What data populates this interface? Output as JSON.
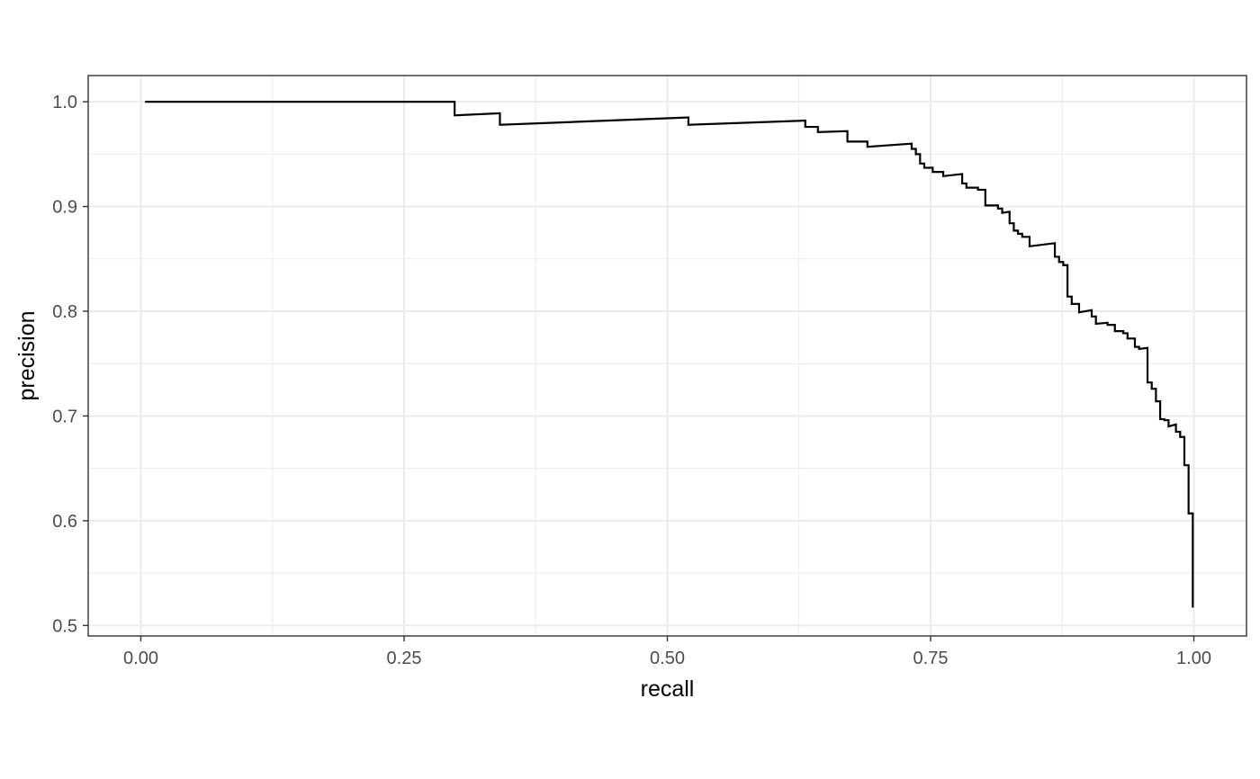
{
  "chart_data": {
    "type": "line",
    "line_style": "step",
    "xlabel": "recall",
    "ylabel": "precision",
    "xlim": [
      -0.05,
      1.05
    ],
    "ylim": [
      0.49,
      1.025
    ],
    "x_ticks": [
      0.0,
      0.25,
      0.5,
      0.75,
      1.0
    ],
    "x_tick_labels": [
      "0.00",
      "0.25",
      "0.50",
      "0.75",
      "1.00"
    ],
    "x_minor_ticks": [
      0.125,
      0.375,
      0.625,
      0.875
    ],
    "y_ticks": [
      0.5,
      0.6,
      0.7,
      0.8,
      0.9,
      1.0
    ],
    "y_tick_labels": [
      "0.5",
      "0.6",
      "0.7",
      "0.8",
      "0.9",
      "1.0"
    ],
    "y_minor_ticks": [
      0.55,
      0.65,
      0.75,
      0.85,
      0.95
    ],
    "grid": true,
    "legend": "none",
    "line_color": "#000000",
    "gridline_color": "#ebebeb",
    "panel_border_color": "#333333",
    "series": [
      {
        "points": [
          [
            0.004,
            1.0
          ],
          [
            0.298,
            1.0
          ],
          [
            0.298,
            0.987
          ],
          [
            0.341,
            0.989
          ],
          [
            0.341,
            0.978
          ],
          [
            0.52,
            0.985
          ],
          [
            0.52,
            0.978
          ],
          [
            0.631,
            0.982
          ],
          [
            0.631,
            0.976
          ],
          [
            0.643,
            0.976
          ],
          [
            0.643,
            0.971
          ],
          [
            0.671,
            0.972
          ],
          [
            0.671,
            0.962
          ],
          [
            0.69,
            0.962
          ],
          [
            0.69,
            0.957
          ],
          [
            0.732,
            0.96
          ],
          [
            0.732,
            0.955
          ],
          [
            0.736,
            0.955
          ],
          [
            0.736,
            0.95
          ],
          [
            0.74,
            0.95
          ],
          [
            0.74,
            0.941
          ],
          [
            0.744,
            0.941
          ],
          [
            0.744,
            0.937
          ],
          [
            0.752,
            0.937
          ],
          [
            0.752,
            0.933
          ],
          [
            0.762,
            0.933
          ],
          [
            0.762,
            0.929
          ],
          [
            0.78,
            0.931
          ],
          [
            0.78,
            0.922
          ],
          [
            0.784,
            0.922
          ],
          [
            0.784,
            0.918
          ],
          [
            0.795,
            0.918
          ],
          [
            0.795,
            0.916
          ],
          [
            0.802,
            0.916
          ],
          [
            0.802,
            0.901
          ],
          [
            0.814,
            0.901
          ],
          [
            0.814,
            0.898
          ],
          [
            0.818,
            0.898
          ],
          [
            0.818,
            0.894
          ],
          [
            0.825,
            0.895
          ],
          [
            0.825,
            0.884
          ],
          [
            0.829,
            0.884
          ],
          [
            0.829,
            0.877
          ],
          [
            0.833,
            0.877
          ],
          [
            0.833,
            0.874
          ],
          [
            0.837,
            0.874
          ],
          [
            0.837,
            0.871
          ],
          [
            0.844,
            0.871
          ],
          [
            0.844,
            0.862
          ],
          [
            0.868,
            0.865
          ],
          [
            0.868,
            0.852
          ],
          [
            0.872,
            0.852
          ],
          [
            0.872,
            0.847
          ],
          [
            0.876,
            0.847
          ],
          [
            0.876,
            0.844
          ],
          [
            0.88,
            0.844
          ],
          [
            0.88,
            0.814
          ],
          [
            0.884,
            0.814
          ],
          [
            0.884,
            0.807
          ],
          [
            0.891,
            0.807
          ],
          [
            0.891,
            0.799
          ],
          [
            0.903,
            0.801
          ],
          [
            0.903,
            0.795
          ],
          [
            0.907,
            0.795
          ],
          [
            0.907,
            0.788
          ],
          [
            0.918,
            0.789
          ],
          [
            0.918,
            0.787
          ],
          [
            0.925,
            0.787
          ],
          [
            0.925,
            0.781
          ],
          [
            0.933,
            0.781
          ],
          [
            0.933,
            0.779
          ],
          [
            0.937,
            0.779
          ],
          [
            0.937,
            0.774
          ],
          [
            0.944,
            0.774
          ],
          [
            0.944,
            0.766
          ],
          [
            0.948,
            0.766
          ],
          [
            0.948,
            0.764
          ],
          [
            0.956,
            0.765
          ],
          [
            0.956,
            0.732
          ],
          [
            0.96,
            0.732
          ],
          [
            0.96,
            0.726
          ],
          [
            0.964,
            0.726
          ],
          [
            0.964,
            0.714
          ],
          [
            0.968,
            0.714
          ],
          [
            0.968,
            0.697
          ],
          [
            0.972,
            0.697
          ],
          [
            0.972,
            0.696
          ],
          [
            0.976,
            0.696
          ],
          [
            0.976,
            0.69
          ],
          [
            0.983,
            0.692
          ],
          [
            0.983,
            0.685
          ],
          [
            0.987,
            0.685
          ],
          [
            0.987,
            0.68
          ],
          [
            0.991,
            0.68
          ],
          [
            0.991,
            0.653
          ],
          [
            0.995,
            0.653
          ],
          [
            0.995,
            0.607
          ],
          [
            0.999,
            0.607
          ],
          [
            0.999,
            0.517
          ]
        ]
      }
    ]
  }
}
